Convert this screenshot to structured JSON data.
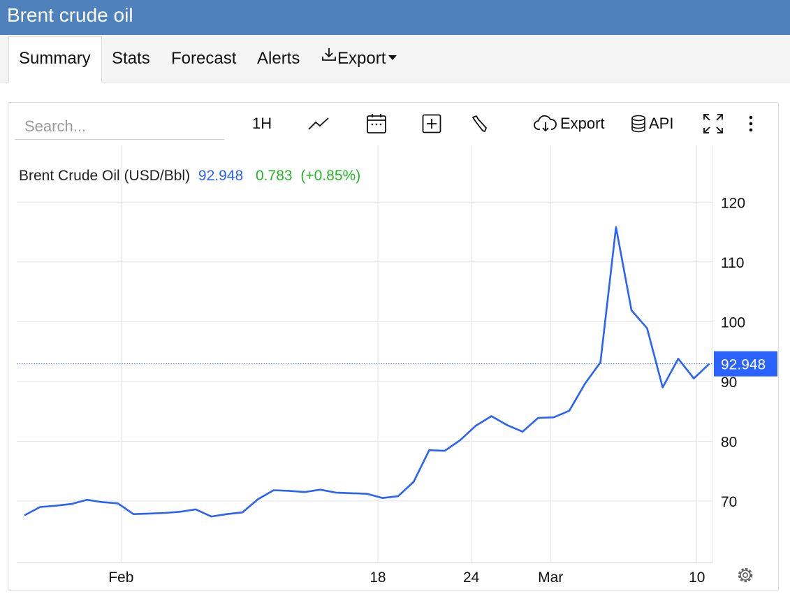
{
  "window": {
    "title": "Brent crude oil"
  },
  "tabs": [
    {
      "label": "Summary",
      "active": true
    },
    {
      "label": "Stats"
    },
    {
      "label": "Forecast"
    },
    {
      "label": "Alerts"
    },
    {
      "label": "Export",
      "icon": "download-icon",
      "has_dropdown": true
    }
  ],
  "toolbar": {
    "search_placeholder": "Search...",
    "interval_label": "1H",
    "export_label": "Export",
    "api_label": "API",
    "icons": [
      "line-chart-icon",
      "calendar-icon",
      "add-indicator-icon",
      "wrench-icon",
      "cloud-download-icon",
      "database-icon",
      "fullscreen-icon",
      "more-vertical-icon",
      "settings-gear-icon"
    ]
  },
  "legend": {
    "name": "Brent Crude Oil (USD/Bbl)",
    "price": "92.948",
    "change": "0.783",
    "change_pct": "(+0.85%)",
    "price_color": "#2962ff",
    "change_color": "#22b822"
  },
  "chart_data": {
    "type": "line",
    "series": [
      {
        "name": "Brent Crude Oil (USD/Bbl)",
        "color": "#2962ff",
        "x": [
          "Jan 26",
          "Jan 27",
          "Jan 28",
          "Jan 29",
          "Jan 30",
          "Jan 31",
          "Feb 1",
          "Feb 2",
          "Feb 3",
          "Feb 4",
          "Feb 5",
          "Feb 6",
          "Feb 7",
          "Feb 8",
          "Feb 9",
          "Feb 10",
          "Feb 11",
          "Feb 12",
          "Feb 13",
          "Feb 14",
          "Feb 15",
          "Feb 16",
          "Feb 17",
          "Feb 18",
          "Feb 19",
          "Feb 20",
          "Feb 21",
          "Feb 22",
          "Feb 23",
          "Feb 24",
          "Feb 25",
          "Feb 26",
          "Feb 27",
          "Feb 28",
          "Mar 1",
          "Mar 2",
          "Mar 3",
          "Mar 4",
          "Mar 5",
          "Mar 6",
          "Mar 7",
          "Mar 8",
          "Mar 9",
          "Mar 10",
          "Mar 11"
        ],
        "values": [
          67.6,
          69.0,
          69.2,
          69.5,
          70.2,
          69.8,
          69.6,
          67.8,
          67.9,
          68.0,
          68.2,
          68.6,
          67.4,
          67.8,
          68.1,
          70.3,
          71.8,
          71.7,
          71.5,
          71.9,
          71.4,
          71.3,
          71.2,
          70.5,
          70.8,
          73.2,
          78.5,
          78.4,
          80.2,
          82.6,
          84.2,
          82.7,
          81.6,
          83.9,
          84.0,
          85.1,
          89.6,
          93.2,
          115.8,
          101.9,
          98.9,
          89.0,
          93.8,
          90.5,
          92.948
        ]
      }
    ],
    "x_ticks": [
      "Feb",
      "18",
      "24",
      "Mar",
      "10"
    ],
    "y_ticks": [
      70,
      80,
      90,
      100,
      110,
      120
    ],
    "ylim": [
      59.7,
      129.5
    ],
    "last_value_label": "92.948",
    "grid": true,
    "legend_position": "top-left"
  }
}
